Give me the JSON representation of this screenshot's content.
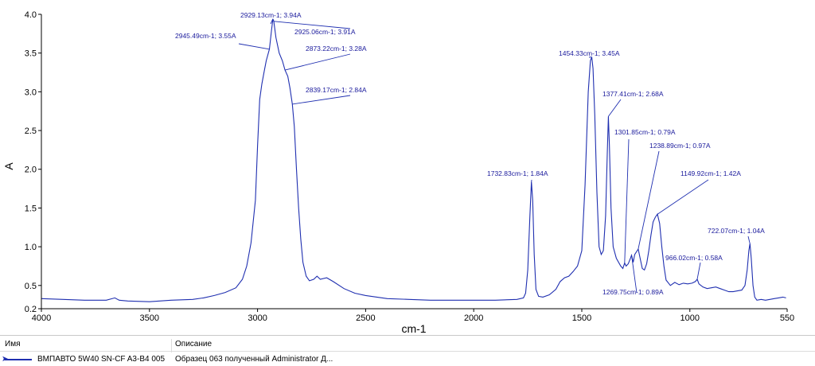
{
  "chart_data": {
    "type": "line",
    "xlabel": "cm-1",
    "ylabel": "A",
    "xlim": [
      4000,
      550
    ],
    "ylim": [
      0.2,
      4.0
    ],
    "x_reversed": true,
    "grid": false,
    "x_ticks": [
      {
        "value": 4000,
        "label": "4000"
      },
      {
        "value": 3500,
        "label": "3500"
      },
      {
        "value": 3000,
        "label": "3000"
      },
      {
        "value": 2500,
        "label": "2500"
      },
      {
        "value": 2000,
        "label": "2000"
      },
      {
        "value": 1500,
        "label": "1500"
      },
      {
        "value": 1000,
        "label": "1000"
      },
      {
        "value": 550,
        "label": "550"
      }
    ],
    "y_ticks": [
      {
        "value": 4.0,
        "label": "4.0"
      },
      {
        "value": 3.5,
        "label": "3.5"
      },
      {
        "value": 3.0,
        "label": "3.0"
      },
      {
        "value": 2.5,
        "label": "2.5"
      },
      {
        "value": 2.0,
        "label": "2.0"
      },
      {
        "value": 1.5,
        "label": "1.5"
      },
      {
        "value": 1.0,
        "label": "1.0"
      },
      {
        "value": 0.5,
        "label": "0.5"
      },
      {
        "value": 0.2,
        "label": "0.2"
      }
    ],
    "series": [
      {
        "name": "ВМПАВТО 5W40 SN-CF A3-B4 005",
        "color": "#1f2fb0",
        "points": [
          [
            4000,
            0.33
          ],
          [
            3900,
            0.32
          ],
          [
            3800,
            0.31
          ],
          [
            3700,
            0.31
          ],
          [
            3660,
            0.34
          ],
          [
            3640,
            0.31
          ],
          [
            3600,
            0.3
          ],
          [
            3500,
            0.29
          ],
          [
            3400,
            0.31
          ],
          [
            3300,
            0.32
          ],
          [
            3250,
            0.34
          ],
          [
            3200,
            0.37
          ],
          [
            3150,
            0.41
          ],
          [
            3100,
            0.47
          ],
          [
            3070,
            0.58
          ],
          [
            3050,
            0.75
          ],
          [
            3030,
            1.05
          ],
          [
            3010,
            1.6
          ],
          [
            3000,
            2.3
          ],
          [
            2990,
            2.9
          ],
          [
            2980,
            3.1
          ],
          [
            2970,
            3.25
          ],
          [
            2960,
            3.4
          ],
          [
            2945,
            3.55
          ],
          [
            2935,
            3.8
          ],
          [
            2929,
            3.94
          ],
          [
            2925,
            3.91
          ],
          [
            2915,
            3.7
          ],
          [
            2900,
            3.5
          ],
          [
            2885,
            3.4
          ],
          [
            2873,
            3.28
          ],
          [
            2860,
            3.2
          ],
          [
            2850,
            3.05
          ],
          [
            2839,
            2.84
          ],
          [
            2830,
            2.55
          ],
          [
            2820,
            2.0
          ],
          [
            2810,
            1.5
          ],
          [
            2800,
            1.1
          ],
          [
            2790,
            0.8
          ],
          [
            2775,
            0.62
          ],
          [
            2760,
            0.56
          ],
          [
            2740,
            0.58
          ],
          [
            2725,
            0.62
          ],
          [
            2710,
            0.58
          ],
          [
            2680,
            0.6
          ],
          [
            2650,
            0.55
          ],
          [
            2600,
            0.46
          ],
          [
            2550,
            0.4
          ],
          [
            2500,
            0.37
          ],
          [
            2400,
            0.33
          ],
          [
            2300,
            0.32
          ],
          [
            2200,
            0.31
          ],
          [
            2100,
            0.31
          ],
          [
            2000,
            0.31
          ],
          [
            1900,
            0.31
          ],
          [
            1800,
            0.32
          ],
          [
            1770,
            0.34
          ],
          [
            1760,
            0.4
          ],
          [
            1750,
            0.7
          ],
          [
            1740,
            1.4
          ],
          [
            1733,
            1.84
          ],
          [
            1727,
            1.6
          ],
          [
            1720,
            0.9
          ],
          [
            1712,
            0.45
          ],
          [
            1700,
            0.36
          ],
          [
            1680,
            0.35
          ],
          [
            1650,
            0.38
          ],
          [
            1620,
            0.45
          ],
          [
            1600,
            0.55
          ],
          [
            1580,
            0.6
          ],
          [
            1560,
            0.62
          ],
          [
            1540,
            0.68
          ],
          [
            1520,
            0.75
          ],
          [
            1500,
            0.95
          ],
          [
            1485,
            1.8
          ],
          [
            1470,
            3.0
          ],
          [
            1460,
            3.4
          ],
          [
            1454,
            3.45
          ],
          [
            1448,
            3.3
          ],
          [
            1440,
            2.7
          ],
          [
            1430,
            1.7
          ],
          [
            1420,
            1.0
          ],
          [
            1410,
            0.9
          ],
          [
            1400,
            0.95
          ],
          [
            1390,
            1.4
          ],
          [
            1382,
            2.2
          ],
          [
            1377,
            2.68
          ],
          [
            1372,
            2.3
          ],
          [
            1365,
            1.5
          ],
          [
            1355,
            1.0
          ],
          [
            1340,
            0.85
          ],
          [
            1320,
            0.75
          ],
          [
            1310,
            0.72
          ],
          [
            1302,
            0.79
          ],
          [
            1295,
            0.75
          ],
          [
            1285,
            0.78
          ],
          [
            1275,
            0.85
          ],
          [
            1270,
            0.89
          ],
          [
            1262,
            0.8
          ],
          [
            1255,
            0.9
          ],
          [
            1239,
            0.97
          ],
          [
            1230,
            0.85
          ],
          [
            1220,
            0.72
          ],
          [
            1210,
            0.7
          ],
          [
            1200,
            0.78
          ],
          [
            1190,
            0.95
          ],
          [
            1180,
            1.15
          ],
          [
            1170,
            1.32
          ],
          [
            1160,
            1.38
          ],
          [
            1150,
            1.42
          ],
          [
            1140,
            1.3
          ],
          [
            1130,
            1.0
          ],
          [
            1120,
            0.75
          ],
          [
            1110,
            0.57
          ],
          [
            1090,
            0.5
          ],
          [
            1070,
            0.54
          ],
          [
            1050,
            0.51
          ],
          [
            1030,
            0.53
          ],
          [
            1010,
            0.52
          ],
          [
            990,
            0.53
          ],
          [
            975,
            0.55
          ],
          [
            966,
            0.58
          ],
          [
            958,
            0.52
          ],
          [
            940,
            0.48
          ],
          [
            920,
            0.46
          ],
          [
            900,
            0.47
          ],
          [
            880,
            0.48
          ],
          [
            860,
            0.46
          ],
          [
            840,
            0.44
          ],
          [
            820,
            0.42
          ],
          [
            800,
            0.42
          ],
          [
            780,
            0.43
          ],
          [
            760,
            0.44
          ],
          [
            745,
            0.5
          ],
          [
            735,
            0.7
          ],
          [
            727,
            0.95
          ],
          [
            722,
            1.04
          ],
          [
            716,
            0.85
          ],
          [
            708,
            0.5
          ],
          [
            700,
            0.35
          ],
          [
            690,
            0.31
          ],
          [
            670,
            0.32
          ],
          [
            650,
            0.31
          ],
          [
            630,
            0.32
          ],
          [
            610,
            0.33
          ],
          [
            590,
            0.34
          ],
          [
            570,
            0.35
          ],
          [
            555,
            0.34
          ]
        ]
      }
    ],
    "annotations": [
      {
        "label": "2929.13cm-1; 3.94A",
        "x": 2929.13,
        "y": 3.94
      },
      {
        "label": "2925.06cm-1; 3.91A",
        "x": 2925.06,
        "y": 3.91
      },
      {
        "label": "2945.49cm-1; 3.55A",
        "x": 2945.49,
        "y": 3.55
      },
      {
        "label": "2873.22cm-1; 3.28A",
        "x": 2873.22,
        "y": 3.28
      },
      {
        "label": "2839.17cm-1; 2.84A",
        "x": 2839.17,
        "y": 2.84
      },
      {
        "label": "1454.33cm-1; 3.45A",
        "x": 1454.33,
        "y": 3.45
      },
      {
        "label": "1377.41cm-1; 2.68A",
        "x": 1377.41,
        "y": 2.68
      },
      {
        "label": "1301.85cm-1; 0.79A",
        "x": 1301.85,
        "y": 0.79
      },
      {
        "label": "1238.89cm-1; 0.97A",
        "x": 1238.89,
        "y": 0.97
      },
      {
        "label": "1149.92cm-1; 1.42A",
        "x": 1149.92,
        "y": 1.42
      },
      {
        "label": "1732.83cm-1; 1.84A",
        "x": 1732.83,
        "y": 1.84
      },
      {
        "label": "966.02cm-1; 0.58A",
        "x": 966.02,
        "y": 0.58
      },
      {
        "label": "722.07cm-1; 1.04A",
        "x": 722.07,
        "y": 1.04
      },
      {
        "label": "1269.75cm-1; 0.89A",
        "x": 1269.75,
        "y": 0.89
      }
    ]
  },
  "legend": {
    "col_name_header": "Имя",
    "col_desc_header": "Описание",
    "rows": [
      {
        "name": "ВМПАВТО 5W40 SN-CF A3-B4 005",
        "description": "Образец 063 полученный Administrator Д..."
      }
    ]
  }
}
